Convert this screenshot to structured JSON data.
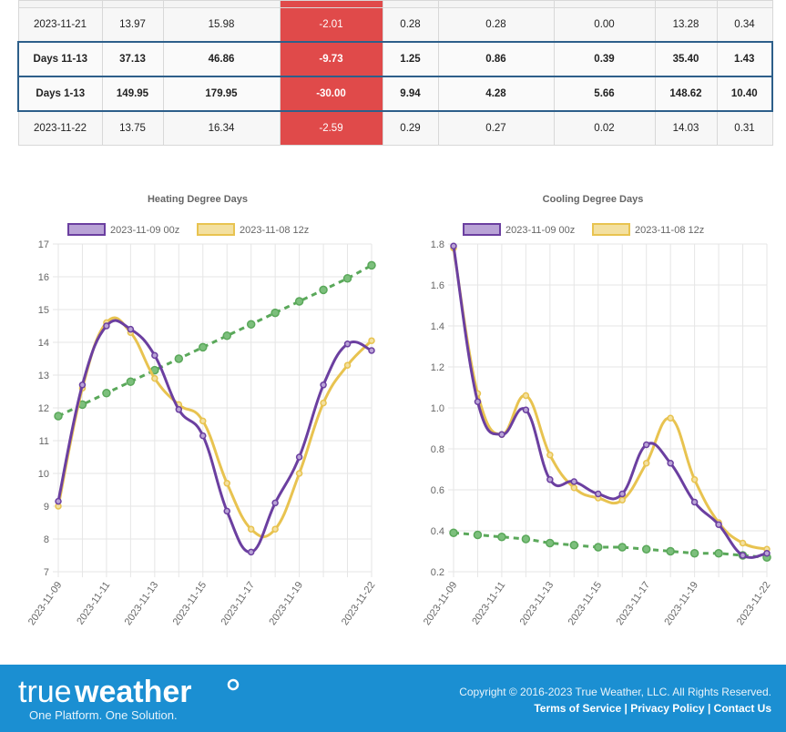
{
  "table": {
    "rows": [
      {
        "type": "topcut",
        "cells": [
          "",
          "",
          "",
          "",
          "",
          "",
          "",
          "",
          ""
        ]
      },
      {
        "type": "plain",
        "cells": [
          "2023-11-21",
          "13.97",
          "15.98",
          "-2.01",
          "0.28",
          "0.28",
          "0.00",
          "13.28",
          "0.34"
        ]
      },
      {
        "type": "hl",
        "cells": [
          "Days 11-13",
          "37.13",
          "46.86",
          "-9.73",
          "1.25",
          "0.86",
          "0.39",
          "35.40",
          "1.43"
        ]
      },
      {
        "type": "hl",
        "cells": [
          "Days 1-13",
          "149.95",
          "179.95",
          "-30.00",
          "9.94",
          "4.28",
          "5.66",
          "148.62",
          "10.40"
        ]
      },
      {
        "type": "plain",
        "cells": [
          "2023-11-22",
          "13.75",
          "16.34",
          "-2.59",
          "0.29",
          "0.27",
          "0.02",
          "14.03",
          "0.31"
        ]
      }
    ]
  },
  "chart_data": [
    {
      "type": "line",
      "title": "Heating Degree Days",
      "x": [
        "2023-11-09",
        "2023-11-10",
        "2023-11-11",
        "2023-11-12",
        "2023-11-13",
        "2023-11-14",
        "2023-11-15",
        "2023-11-16",
        "2023-11-17",
        "2023-11-18",
        "2023-11-19",
        "2023-11-20",
        "2023-11-21",
        "2023-11-22"
      ],
      "xticks": [
        "2023-11-09",
        "2023-11-11",
        "2023-11-13",
        "2023-11-15",
        "2023-11-17",
        "2023-11-19",
        "2023-11-22"
      ],
      "ylim": [
        7,
        17
      ],
      "yticks": [
        7,
        8,
        9,
        10,
        11,
        12,
        13,
        14,
        15,
        16,
        17
      ],
      "legend_position": "top",
      "grid": true,
      "series": [
        {
          "name": "2023-11-09 00z",
          "color": "#6b3fa0",
          "fill": "#b9a3d6",
          "values": [
            9.15,
            12.7,
            14.5,
            14.4,
            13.6,
            11.95,
            11.15,
            8.85,
            7.6,
            9.1,
            10.5,
            12.7,
            13.95,
            13.75
          ]
        },
        {
          "name": "2023-11-08 12z",
          "color": "#e8c350",
          "fill": "#f3e0a0",
          "values": [
            9.0,
            12.6,
            14.6,
            14.3,
            12.9,
            12.1,
            11.6,
            9.7,
            8.3,
            8.3,
            10.0,
            12.15,
            13.3,
            14.05
          ]
        },
        {
          "name": "",
          "color": "#5aa85a",
          "dashed": true,
          "values": [
            11.75,
            12.1,
            12.45,
            12.8,
            13.15,
            13.5,
            13.85,
            14.2,
            14.55,
            14.9,
            15.25,
            15.6,
            15.95,
            16.35
          ]
        }
      ]
    },
    {
      "type": "line",
      "title": "Cooling Degree Days",
      "x": [
        "2023-11-09",
        "2023-11-10",
        "2023-11-11",
        "2023-11-12",
        "2023-11-13",
        "2023-11-14",
        "2023-11-15",
        "2023-11-16",
        "2023-11-17",
        "2023-11-18",
        "2023-11-19",
        "2023-11-20",
        "2023-11-21",
        "2023-11-22"
      ],
      "xticks": [
        "2023-11-09",
        "2023-11-11",
        "2023-11-13",
        "2023-11-15",
        "2023-11-17",
        "2023-11-19",
        "2023-11-22"
      ],
      "ylim": [
        0.2,
        1.8
      ],
      "yticks": [
        "0.2",
        "0.4",
        "0.6",
        "0.8",
        "1.0",
        "1.2",
        "1.4",
        "1.6",
        "1.8"
      ],
      "legend_position": "top",
      "grid": true,
      "series": [
        {
          "name": "2023-11-09 00z",
          "color": "#6b3fa0",
          "fill": "#b9a3d6",
          "values": [
            1.79,
            1.03,
            0.87,
            0.99,
            0.65,
            0.64,
            0.58,
            0.58,
            0.82,
            0.73,
            0.54,
            0.43,
            0.28,
            0.29
          ]
        },
        {
          "name": "2023-11-08 12z",
          "color": "#e8c350",
          "fill": "#f3e0a0",
          "values": [
            1.78,
            1.07,
            0.87,
            1.06,
            0.77,
            0.61,
            0.56,
            0.55,
            0.73,
            0.95,
            0.65,
            0.44,
            0.34,
            0.31
          ]
        },
        {
          "name": "",
          "color": "#5aa85a",
          "dashed": true,
          "values": [
            0.39,
            0.38,
            0.37,
            0.36,
            0.34,
            0.33,
            0.32,
            0.32,
            0.31,
            0.3,
            0.29,
            0.29,
            0.28,
            0.27
          ]
        }
      ]
    }
  ],
  "footer": {
    "logo_text_a": "true",
    "logo_text_b": "weather",
    "tagline": "One Platform. One Solution.",
    "copyright": "Copyright © 2016-2023 True Weather, LLC. All Rights Reserved.",
    "links": [
      "Terms of Service",
      "Privacy Policy",
      "Contact Us"
    ],
    "sep": "|"
  }
}
